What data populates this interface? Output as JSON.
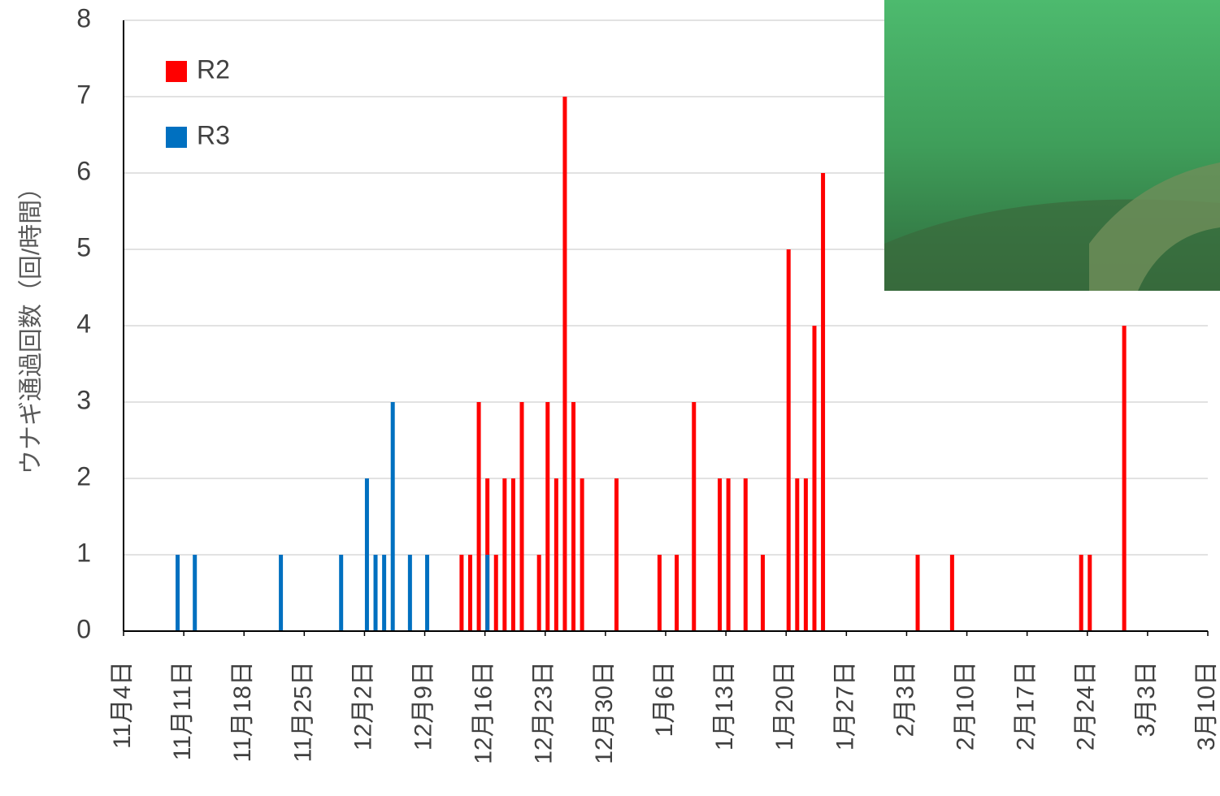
{
  "chart_data": {
    "type": "bar",
    "y_label": "ウナギ通過回数（回/時間）",
    "ylim": [
      0,
      8
    ],
    "yticks": [
      0,
      1,
      2,
      3,
      4,
      5,
      6,
      7,
      8
    ],
    "grid": true,
    "legend": "upper left",
    "xlim": [
      0,
      126
    ],
    "xticks": [
      {
        "value": 0,
        "label": "11月4日"
      },
      {
        "value": 7,
        "label": "11月11日"
      },
      {
        "value": 14,
        "label": "11月18日"
      },
      {
        "value": 21,
        "label": "11月25日"
      },
      {
        "value": 28,
        "label": "12月2日"
      },
      {
        "value": 35,
        "label": "12月9日"
      },
      {
        "value": 42,
        "label": "12月16日"
      },
      {
        "value": 49,
        "label": "12月23日"
      },
      {
        "value": 56,
        "label": "12月30日"
      },
      {
        "value": 63,
        "label": "1月6日"
      },
      {
        "value": 70,
        "label": "1月13日"
      },
      {
        "value": 77,
        "label": "1月20日"
      },
      {
        "value": 84,
        "label": "1月27日"
      },
      {
        "value": 91,
        "label": "2月3日"
      },
      {
        "value": 98,
        "label": "2月10日"
      },
      {
        "value": 105,
        "label": "2月17日"
      },
      {
        "value": 112,
        "label": "2月24日"
      },
      {
        "value": 119,
        "label": "3月3日"
      },
      {
        "value": 126,
        "label": "3月10日"
      }
    ],
    "series": [
      {
        "name": "R2",
        "color": "#ff0000",
        "x": [
          39,
          40,
          41,
          42,
          43,
          44,
          45,
          46,
          48,
          49,
          50,
          51,
          52,
          53,
          57,
          62,
          64,
          66,
          69,
          70,
          72,
          74,
          77,
          78,
          79,
          80,
          81,
          92,
          96,
          111,
          112,
          116
        ],
        "values": [
          1,
          1,
          3,
          2,
          1,
          2,
          2,
          3,
          1,
          3,
          2,
          7,
          3,
          2,
          2,
          1,
          1,
          3,
          2,
          2,
          2,
          1,
          5,
          2,
          2,
          4,
          6,
          1,
          1,
          1,
          1,
          4
        ]
      },
      {
        "name": "R3",
        "color": "#0070c0",
        "x": [
          6,
          8,
          18,
          25,
          28,
          29,
          30,
          31,
          33,
          35,
          42
        ],
        "values": [
          1,
          1,
          1,
          1,
          2,
          1,
          1,
          3,
          1,
          1,
          1
        ]
      }
    ]
  }
}
